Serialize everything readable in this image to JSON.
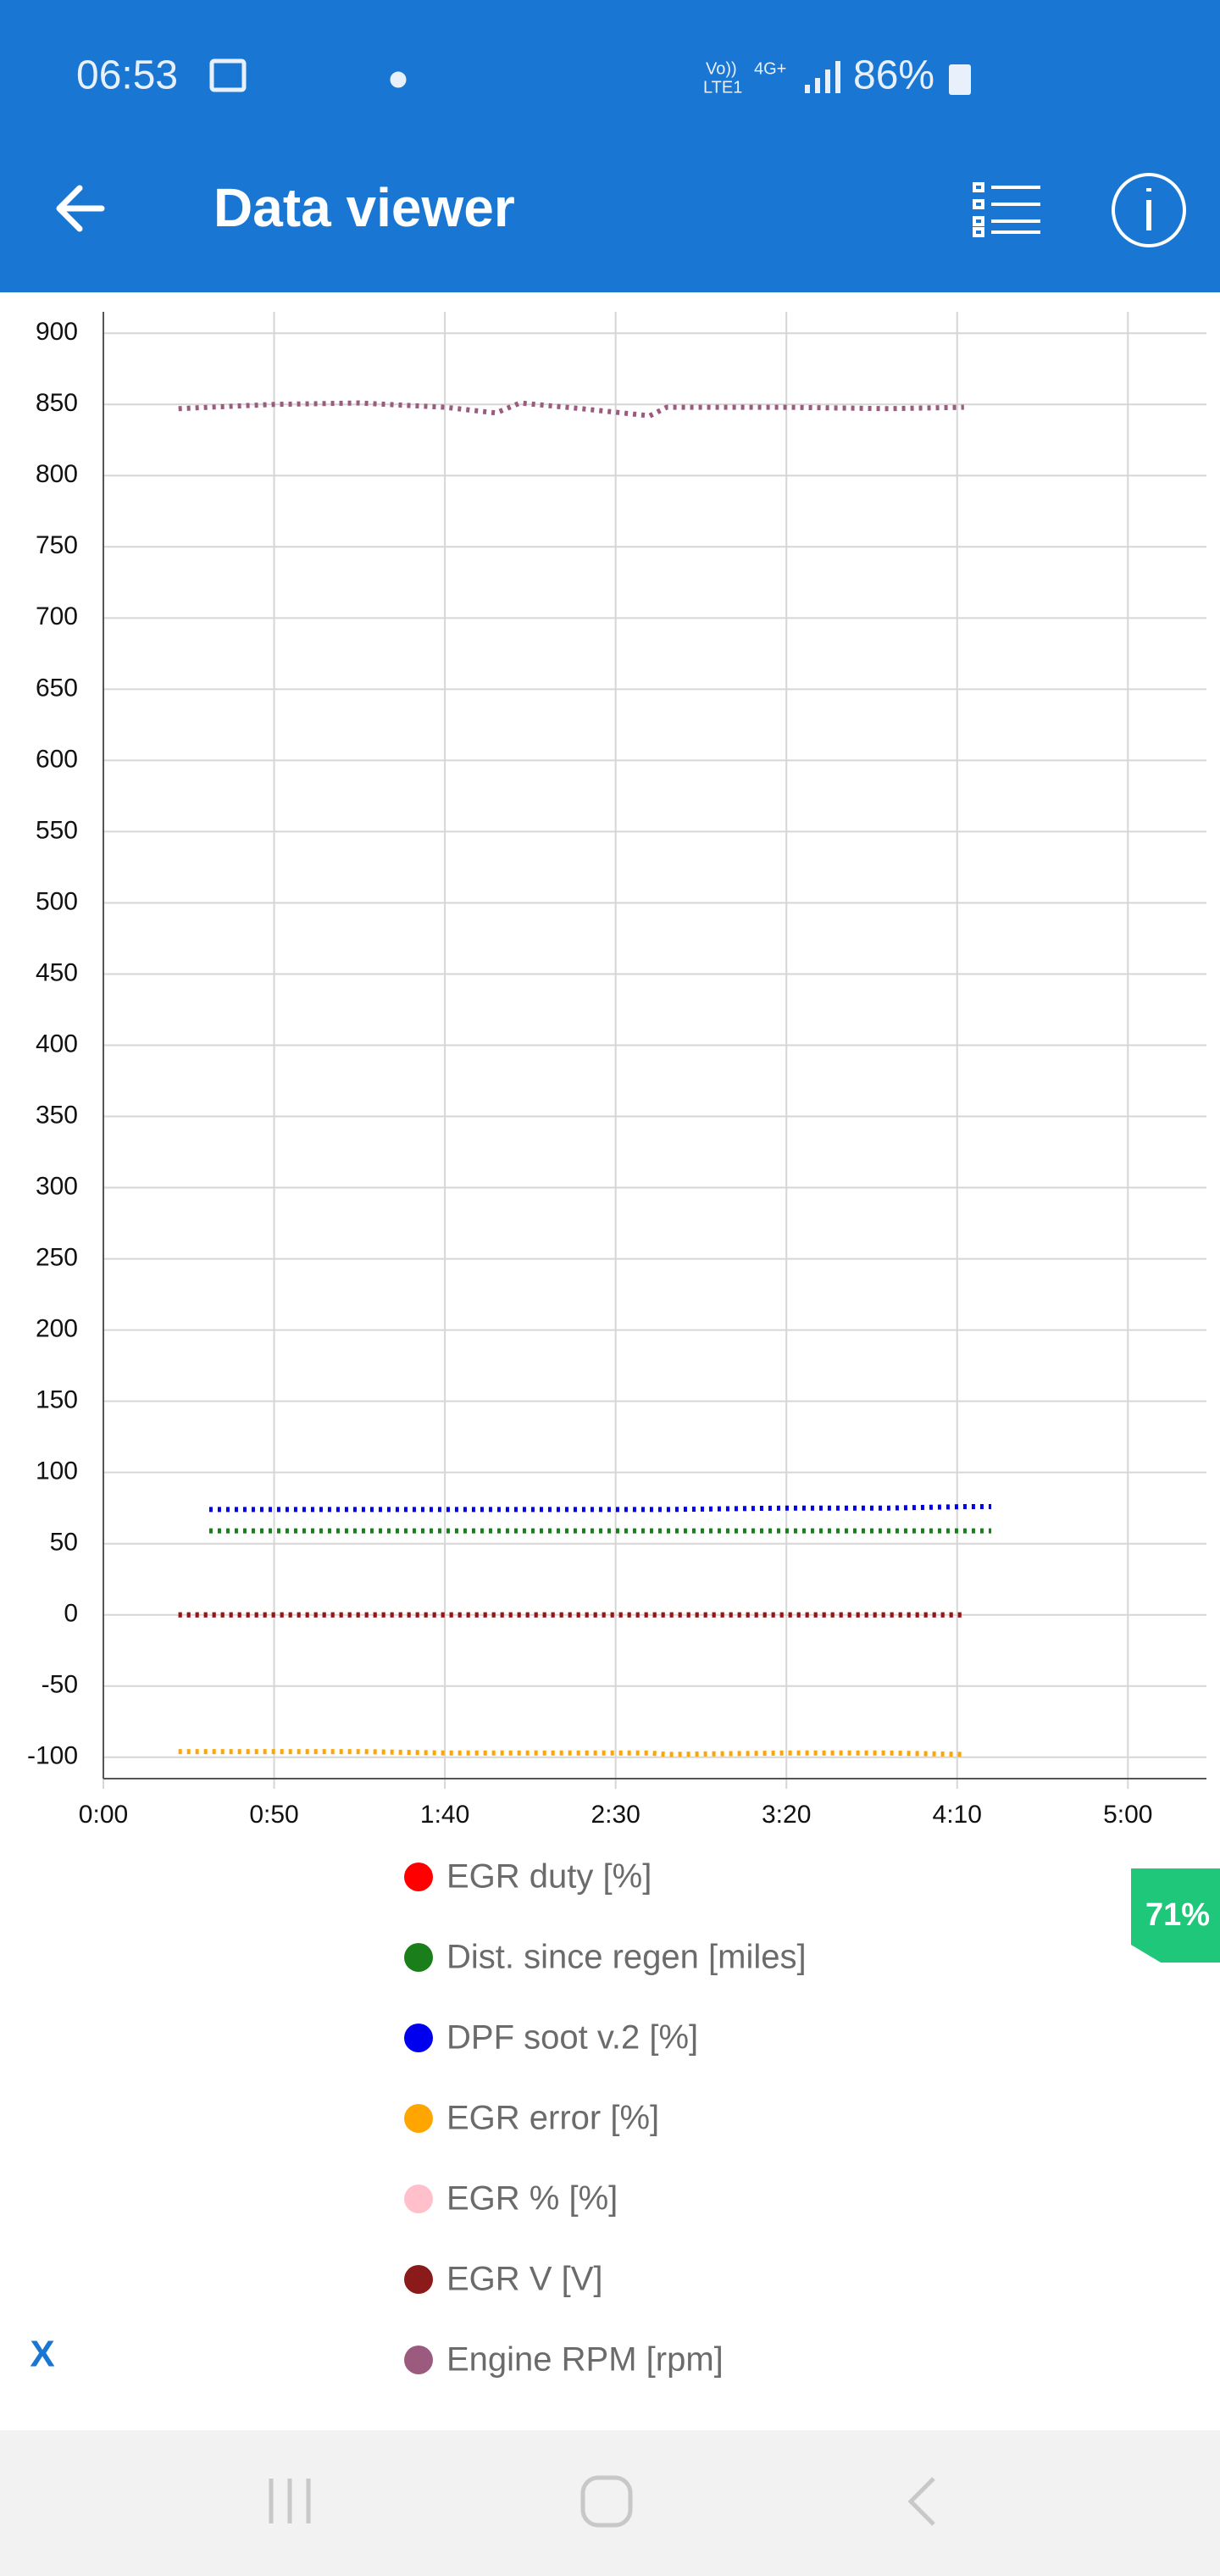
{
  "status_bar": {
    "time": "06:53",
    "network": [
      "Vo))",
      "LTE1",
      "4G+"
    ],
    "battery": "86%"
  },
  "header": {
    "title": "Data viewer"
  },
  "badge": "71%",
  "close_button": "X",
  "chart_data": {
    "type": "line",
    "x": [
      22,
      31,
      50,
      75,
      100,
      115,
      122,
      140,
      160,
      165,
      200,
      230,
      252,
      260
    ],
    "xlim": [
      0,
      323
    ],
    "xticks": [
      {
        "value": 0,
        "label": "0:00"
      },
      {
        "value": 50,
        "label": "0:50"
      },
      {
        "value": 100,
        "label": "1:40"
      },
      {
        "value": 150,
        "label": "2:30"
      },
      {
        "value": 200,
        "label": "3:20"
      },
      {
        "value": 250,
        "label": "4:10"
      },
      {
        "value": 300,
        "label": "5:00"
      }
    ],
    "ylim": [
      -115,
      915
    ],
    "yticks": [
      -100,
      -50,
      0,
      50,
      100,
      150,
      200,
      250,
      300,
      350,
      400,
      450,
      500,
      550,
      600,
      650,
      700,
      750,
      800,
      850,
      900
    ],
    "grid": true,
    "line_style": "dotted",
    "series": [
      {
        "name": "EGR duty [%]",
        "color": "#ff0000",
        "values": [
          0,
          0,
          0,
          0,
          0,
          0,
          0,
          0,
          0,
          0,
          0,
          0,
          0,
          null
        ]
      },
      {
        "name": "Dist. since regen [miles]",
        "color": "#1a7f1a",
        "values": [
          null,
          59,
          59,
          59,
          59,
          59,
          59,
          59,
          59,
          59,
          59,
          59,
          59,
          59
        ]
      },
      {
        "name": "DPF soot v.2 [%]",
        "color": "#0000ee",
        "values": [
          null,
          74,
          74,
          74,
          74,
          74,
          74,
          74,
          74,
          74,
          75,
          75,
          76,
          76
        ]
      },
      {
        "name": "EGR error [%]",
        "color": "#ffa500",
        "values": [
          -96,
          -96,
          -96,
          -96,
          -97,
          -97,
          -97,
          -97,
          -97,
          -98,
          -97,
          -97,
          -98,
          null
        ]
      },
      {
        "name": "EGR % [%]",
        "color": "#ffc0cb",
        "values": [
          null,
          null,
          null,
          null,
          null,
          null,
          null,
          null,
          null,
          null,
          null,
          null,
          null,
          null
        ]
      },
      {
        "name": "EGR V [V]",
        "color": "#8b1a1a",
        "values": [
          0,
          0,
          0,
          0,
          0,
          0,
          0,
          0,
          0,
          0,
          0,
          0,
          0,
          null
        ]
      },
      {
        "name": "Engine RPM [rpm]",
        "color": "#9b5b7f",
        "values": [
          847,
          848,
          850,
          851,
          848,
          844,
          851,
          847,
          842,
          848,
          848,
          847,
          848,
          null
        ]
      }
    ]
  }
}
